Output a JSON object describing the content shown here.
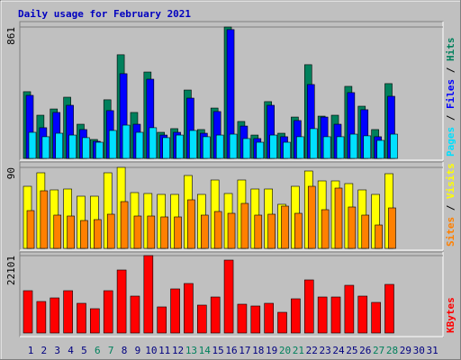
{
  "title": "Daily usage for February 2021",
  "categories": [
    "1",
    "2",
    "3",
    "4",
    "5",
    "6",
    "7",
    "8",
    "9",
    "10",
    "11",
    "12",
    "13",
    "14",
    "15",
    "16",
    "17",
    "18",
    "19",
    "20",
    "21",
    "22",
    "23",
    "24",
    "25",
    "26",
    "27",
    "28",
    "29",
    "30",
    "31"
  ],
  "category_colors": [
    "#000080",
    "#000080",
    "#000080",
    "#000080",
    "#000080",
    "#00805c",
    "#00805c",
    "#000080",
    "#000080",
    "#000080",
    "#000080",
    "#000080",
    "#00805c",
    "#00805c",
    "#000080",
    "#000080",
    "#000080",
    "#000080",
    "#000080",
    "#00805c",
    "#00805c",
    "#000080",
    "#000080",
    "#000080",
    "#000080",
    "#000080",
    "#00805c",
    "#00805c",
    "#000080",
    "#000080",
    "#000080"
  ],
  "legend_separator": " / ",
  "chart_data": [
    {
      "type": "bar",
      "ylim": [
        0,
        861
      ],
      "yticks": [
        861
      ],
      "series": [
        {
          "name": "Hits",
          "color": "#00805c",
          "values": [
            437,
            283,
            324,
            401,
            224,
            124,
            384,
            679,
            301,
            566,
            171,
            195,
            448,
            189,
            330,
            861,
            242,
            153,
            372,
            165,
            271,
            614,
            277,
            283,
            472,
            342,
            189,
            490,
            null,
            null,
            null
          ]
        },
        {
          "name": "Files",
          "color": "#0000ff",
          "values": [
            413,
            201,
            301,
            348,
            189,
            112,
            313,
            555,
            224,
            519,
            153,
            171,
            395,
            165,
            307,
            844,
            212,
            130,
            348,
            142,
            248,
            484,
            271,
            224,
            431,
            319,
            142,
            407,
            null,
            null,
            null
          ]
        },
        {
          "name": "Pages",
          "color": "#00e0ff",
          "values": [
            171,
            142,
            165,
            153,
            136,
            106,
            183,
            218,
            171,
            201,
            136,
            153,
            183,
            142,
            153,
            159,
            130,
            106,
            153,
            106,
            142,
            195,
            142,
            142,
            159,
            148,
            118,
            159,
            null,
            null,
            null
          ]
        }
      ]
    },
    {
      "type": "bar",
      "ylim": [
        0,
        90
      ],
      "yticks": [
        90
      ],
      "series": [
        {
          "name": "Visits",
          "color": "#ffff00",
          "values": [
            69,
            84,
            65,
            66,
            58,
            58,
            84,
            90,
            62,
            61,
            60,
            60,
            81,
            60,
            76,
            61,
            76,
            66,
            66,
            49,
            69,
            86,
            75,
            75,
            72,
            65,
            60,
            83,
            null,
            null,
            null
          ]
        },
        {
          "name": "Sites",
          "color": "#ff8000",
          "values": [
            42,
            64,
            37,
            36,
            31,
            32,
            38,
            52,
            36,
            36,
            35,
            35,
            54,
            37,
            41,
            39,
            50,
            37,
            38,
            47,
            39,
            69,
            43,
            67,
            46,
            37,
            26,
            45,
            null,
            null,
            null
          ]
        }
      ]
    },
    {
      "type": "bar",
      "ylim": [
        0,
        22101
      ],
      "yticks": [
        22101
      ],
      "series": [
        {
          "name": "KBytes",
          "color": "#ff0000",
          "values": [
            12080,
            8995,
            10023,
            12080,
            8481,
            6939,
            12080,
            17990,
            10537,
            22101,
            7453,
            12593,
            14135,
            7967,
            10280,
            20817,
            8224,
            7710,
            8481,
            5911,
            9766,
            15163,
            10280,
            10280,
            13621,
            10537,
            8738,
            13878,
            null,
            null,
            null
          ]
        }
      ]
    }
  ]
}
